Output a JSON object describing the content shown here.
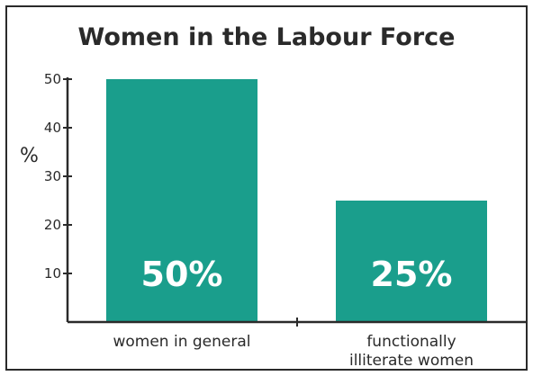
{
  "chart_data": {
    "type": "bar",
    "title": "Women in the Labour Force",
    "ylabel": "%",
    "xlabel": "",
    "ylim": [
      0,
      50
    ],
    "yticks": [
      10,
      20,
      30,
      40,
      50
    ],
    "categories": [
      [
        "women in general"
      ],
      [
        "functionally",
        "illiterate women"
      ]
    ],
    "values": [
      50,
      25
    ],
    "data_labels": [
      "50%",
      "25%"
    ],
    "bar_color": "#1a9e8c",
    "grid": false,
    "legend": "none"
  }
}
